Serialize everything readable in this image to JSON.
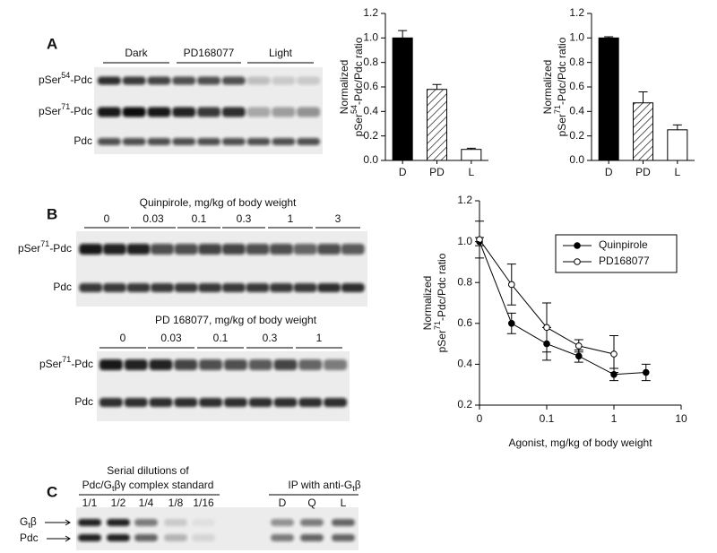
{
  "panels": {
    "a": "A",
    "b": "B",
    "c": "C"
  },
  "panel_a": {
    "groups": [
      "Dark",
      "PD168077",
      "Light"
    ],
    "rows": [
      {
        "text": "pSer",
        "sup": "54",
        "tail": "-Pdc"
      },
      {
        "text": "pSer",
        "sup": "71",
        "tail": "-Pdc"
      },
      {
        "text": "Pdc"
      }
    ]
  },
  "panel_b": {
    "top": {
      "title": "Quinpirole, mg/kg of body weight",
      "doses": [
        "0",
        "0.03",
        "0.1",
        "0.3",
        "1",
        "3"
      ],
      "rows": [
        {
          "text": "pSer",
          "sup": "71",
          "tail": "-Pdc"
        },
        {
          "text": "Pdc"
        }
      ]
    },
    "bottom": {
      "title": "PD 168077, mg/kg of body weight",
      "doses": [
        "0",
        "0.03",
        "0.1",
        "0.3",
        "1"
      ],
      "rows": [
        {
          "text": "pSer",
          "sup": "71",
          "tail": "-Pdc"
        },
        {
          "text": "Pdc"
        }
      ]
    }
  },
  "panel_c": {
    "title1": "Serial dilutions of",
    "title2": {
      "text": "Pdc/G",
      "sub": "t",
      "tail": "βγ complex standard"
    },
    "dilutions": [
      "1/1",
      "1/2",
      "1/4",
      "1/8",
      "1/16"
    ],
    "ip_title": {
      "text": "IP with anti-G",
      "sub": "t",
      "tail": "β"
    },
    "ip_lanes": [
      "D",
      "Q",
      "L"
    ],
    "rows": [
      {
        "text": "G",
        "sub": "t",
        "tail": "β"
      },
      {
        "text": "Pdc"
      }
    ]
  },
  "chart_data": [
    {
      "type": "bar",
      "categories": [
        "D",
        "PD",
        "L"
      ],
      "values": [
        1.0,
        0.58,
        0.09
      ],
      "errors": [
        0.06,
        0.04,
        0.01
      ],
      "patterns": [
        "solid",
        "hatch",
        "open"
      ],
      "ylabel": {
        "line1": "Normalized",
        "text": "pSer",
        "sup": "54",
        "tail": "-Pdc/Pdc ratio"
      },
      "ylim": [
        0,
        1.2
      ],
      "yticks": [
        {
          "value": 0,
          "label": "0.0"
        },
        0.2,
        0.4,
        0.6,
        0.8,
        {
          "value": 1,
          "label": "1.0"
        },
        1.2
      ]
    },
    {
      "type": "bar",
      "categories": [
        "D",
        "PD",
        "L"
      ],
      "values": [
        1.0,
        0.47,
        0.25
      ],
      "errors": [
        0.01,
        0.09,
        0.04
      ],
      "patterns": [
        "solid",
        "hatch",
        "open"
      ],
      "ylabel": {
        "line1": "Normalized",
        "text": "pSer",
        "sup": "71",
        "tail": "-Pdc/Pdc ratio"
      },
      "ylim": [
        0,
        1.2
      ],
      "yticks": [
        {
          "value": 0,
          "label": "0.0"
        },
        0.2,
        0.4,
        0.6,
        0.8,
        {
          "value": 1,
          "label": "1.0"
        },
        1.2
      ]
    },
    {
      "type": "line",
      "log_x": true,
      "legend": "upper right",
      "xlabel": "Agonist, mg/kg of body weight",
      "ylabel": {
        "line1": "Normalized",
        "text": "pSer",
        "sup": "71",
        "tail": "-Pdc/Pdc ratio"
      },
      "xlim": [
        0,
        10
      ],
      "xticks": [
        0,
        0.1,
        1,
        10
      ],
      "ylim": [
        0.2,
        1.2
      ],
      "yticks": [
        0.2,
        0.4,
        0.6,
        0.8,
        {
          "value": 1,
          "label": "1.0"
        },
        1.2
      ],
      "series": [
        {
          "name": "Quinpirole",
          "color": "#000000",
          "marker": "filled",
          "x": [
            0,
            0.03,
            0.1,
            0.3,
            1,
            3
          ],
          "values": [
            1.0,
            0.6,
            0.5,
            0.44,
            0.35,
            0.36
          ],
          "errors": [
            0.02,
            0.05,
            0.08,
            0.03,
            0.03,
            0.04
          ]
        },
        {
          "name": "PD168077",
          "color": "#000000",
          "marker": "open",
          "x": [
            0,
            0.03,
            0.1,
            0.3,
            1
          ],
          "values": [
            1.01,
            0.79,
            0.58,
            0.49,
            0.45
          ],
          "errors": [
            0.09,
            0.1,
            0.12,
            0.03,
            0.09
          ]
        }
      ]
    }
  ]
}
